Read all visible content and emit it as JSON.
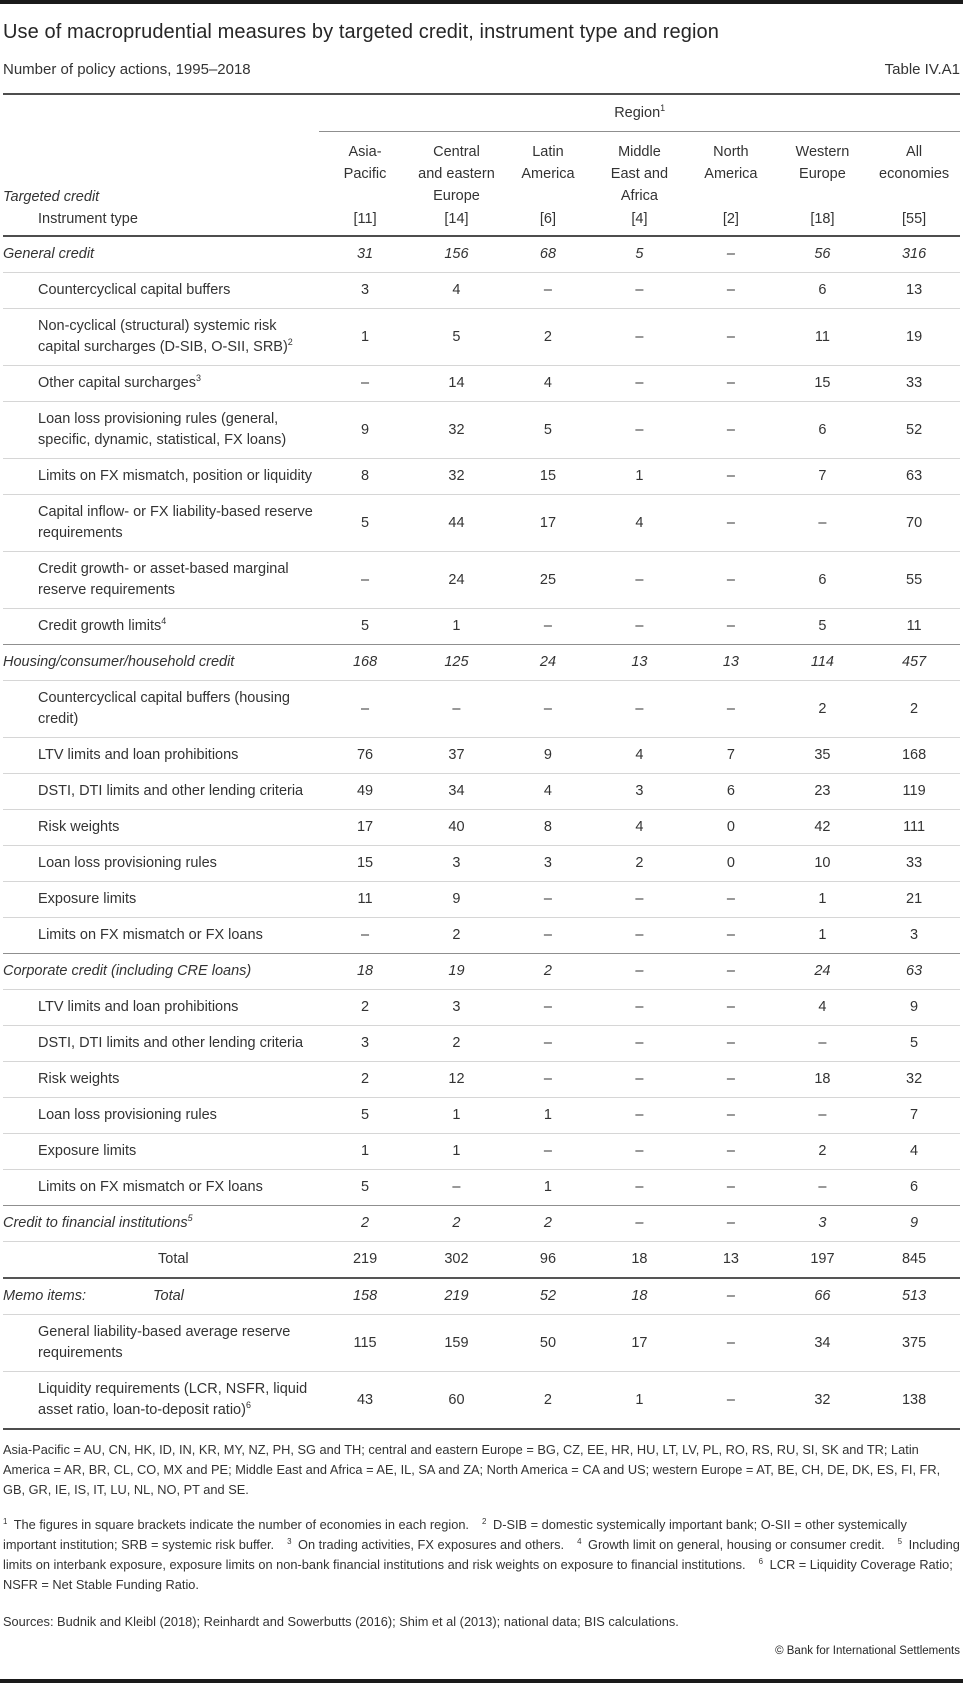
{
  "header": {
    "title": "Use of macroprudential measures by targeted credit, instrument type and region",
    "subtitle": "Number of policy actions, 1995–2018",
    "table_label": "Table IV.A1"
  },
  "table": {
    "region_label": "Region",
    "region_sup": "1",
    "targeted_credit_label": "Targeted credit",
    "instrument_type_label": "Instrument type",
    "columns": [
      {
        "name": "Asia-Pacific",
        "lines": [
          "Asia-",
          "Pacific"
        ],
        "count": "[11]"
      },
      {
        "name": "Central and eastern Europe",
        "lines": [
          "Central",
          "and eastern",
          "Europe"
        ],
        "count": "[14]"
      },
      {
        "name": "Latin America",
        "lines": [
          "Latin",
          "America"
        ],
        "count": "[6]"
      },
      {
        "name": "Middle East and Africa",
        "lines": [
          "Middle",
          "East and",
          "Africa"
        ],
        "count": "[4]"
      },
      {
        "name": "North America",
        "lines": [
          "North",
          "America"
        ],
        "count": "[2]"
      },
      {
        "name": "Western Europe",
        "lines": [
          "Western",
          "Europe"
        ],
        "count": "[18]"
      },
      {
        "name": "All economies",
        "lines": [
          "All",
          "economies"
        ],
        "count": "[55]"
      }
    ],
    "rows": [
      {
        "type": "section",
        "label": "General credit",
        "values": [
          "31",
          "156",
          "68",
          "5",
          "–",
          "56",
          "316"
        ]
      },
      {
        "type": "item",
        "label": "Countercyclical capital buffers",
        "values": [
          "3",
          "4",
          "–",
          "–",
          "–",
          "6",
          "13"
        ]
      },
      {
        "type": "item",
        "label": "Non-cyclical (structural) systemic risk capital surcharges (D-SIB, O-SII, SRB)",
        "sup": "2",
        "values": [
          "1",
          "5",
          "2",
          "–",
          "–",
          "11",
          "19"
        ]
      },
      {
        "type": "item",
        "label": "Other capital surcharges",
        "sup": "3",
        "values": [
          "–",
          "14",
          "4",
          "–",
          "–",
          "15",
          "33"
        ]
      },
      {
        "type": "item",
        "label": "Loan loss provisioning rules (general, specific, dynamic, statistical, FX loans)",
        "values": [
          "9",
          "32",
          "5",
          "–",
          "–",
          "6",
          "52"
        ]
      },
      {
        "type": "item",
        "label": "Limits on FX mismatch, position or liquidity",
        "values": [
          "8",
          "32",
          "15",
          "1",
          "–",
          "7",
          "63"
        ]
      },
      {
        "type": "item",
        "label": "Capital inflow- or FX liability-based reserve requirements",
        "values": [
          "5",
          "44",
          "17",
          "4",
          "–",
          "–",
          "70"
        ]
      },
      {
        "type": "item",
        "label": "Credit growth- or asset-based marginal reserve requirements",
        "values": [
          "–",
          "24",
          "25",
          "–",
          "–",
          "6",
          "55"
        ]
      },
      {
        "type": "item",
        "label": "Credit growth limits",
        "sup": "4",
        "values": [
          "5",
          "1",
          "–",
          "–",
          "–",
          "5",
          "11"
        ]
      },
      {
        "type": "section",
        "label": "Housing/consumer/household credit",
        "values": [
          "168",
          "125",
          "24",
          "13",
          "13",
          "114",
          "457"
        ]
      },
      {
        "type": "item",
        "label": "Countercyclical capital buffers (housing credit)",
        "values": [
          "–",
          "–",
          "–",
          "–",
          "–",
          "2",
          "2"
        ]
      },
      {
        "type": "item",
        "label": "LTV limits and loan prohibitions",
        "values": [
          "76",
          "37",
          "9",
          "4",
          "7",
          "35",
          "168"
        ]
      },
      {
        "type": "item",
        "label": "DSTI, DTI limits and other lending criteria",
        "values": [
          "49",
          "34",
          "4",
          "3",
          "6",
          "23",
          "119"
        ]
      },
      {
        "type": "item",
        "label": "Risk weights",
        "values": [
          "17",
          "40",
          "8",
          "4",
          "0",
          "42",
          "111"
        ]
      },
      {
        "type": "item",
        "label": "Loan loss provisioning rules",
        "values": [
          "15",
          "3",
          "3",
          "2",
          "0",
          "10",
          "33"
        ]
      },
      {
        "type": "item",
        "label": "Exposure limits",
        "values": [
          "11",
          "9",
          "–",
          "–",
          "–",
          "1",
          "21"
        ]
      },
      {
        "type": "item",
        "label": "Limits on FX mismatch or FX loans",
        "values": [
          "–",
          "2",
          "–",
          "–",
          "–",
          "1",
          "3"
        ]
      },
      {
        "type": "section",
        "label": "Corporate credit (including CRE loans)",
        "values": [
          "18",
          "19",
          "2",
          "–",
          "–",
          "24",
          "63"
        ]
      },
      {
        "type": "item",
        "label": "LTV limits and loan prohibitions",
        "values": [
          "2",
          "3",
          "–",
          "–",
          "–",
          "4",
          "9"
        ]
      },
      {
        "type": "item",
        "label": "DSTI, DTI limits and other lending criteria",
        "values": [
          "3",
          "2",
          "–",
          "–",
          "–",
          "–",
          "5"
        ]
      },
      {
        "type": "item",
        "label": "Risk weights",
        "values": [
          "2",
          "12",
          "–",
          "–",
          "–",
          "18",
          "32"
        ]
      },
      {
        "type": "item",
        "label": "Loan loss provisioning rules",
        "values": [
          "5",
          "1",
          "1",
          "–",
          "–",
          "–",
          "7"
        ]
      },
      {
        "type": "item",
        "label": "Exposure limits",
        "values": [
          "1",
          "1",
          "–",
          "–",
          "–",
          "2",
          "4"
        ]
      },
      {
        "type": "item",
        "label": "Limits on FX mismatch or FX loans",
        "values": [
          "5",
          "–",
          "1",
          "–",
          "–",
          "–",
          "6"
        ]
      },
      {
        "type": "section",
        "label": "Credit to financial institutions",
        "sup": "5",
        "values": [
          "2",
          "2",
          "2",
          "–",
          "–",
          "3",
          "9"
        ]
      },
      {
        "type": "total",
        "label": "Total",
        "values": [
          "219",
          "302",
          "96",
          "18",
          "13",
          "197",
          "845"
        ]
      },
      {
        "type": "memo",
        "label": "Memo items:",
        "label2": "Total",
        "values": [
          "158",
          "219",
          "52",
          "18",
          "–",
          "66",
          "513"
        ]
      },
      {
        "type": "item",
        "label": "General liability-based average reserve requirements",
        "values": [
          "115",
          "159",
          "50",
          "17",
          "–",
          "34",
          "375"
        ]
      },
      {
        "type": "item",
        "label": "Liquidity requirements (LCR, NSFR, liquid asset ratio, loan-to-deposit ratio)",
        "sup": "6",
        "values": [
          "43",
          "60",
          "2",
          "1",
          "–",
          "32",
          "138"
        ]
      }
    ]
  },
  "footer": {
    "region_note": "Asia-Pacific = AU, CN, HK, ID, IN, KR, MY, NZ, PH, SG and TH; central and eastern Europe = BG, CZ, EE, HR, HU, LT, LV, PL, RO, RS, RU, SI, SK and TR; Latin America = AR, BR, CL, CO, MX and PE; Middle East and Africa = AE, IL, SA and ZA; North America = CA and US; western Europe = AT, BE, CH, DE, DK, ES, FI, FR, GB, GR, IE, IS, IT, LU, NL, NO, PT and SE.",
    "footnotes": [
      {
        "sup": "1",
        "text": "The figures in square brackets indicate the number of economies in each region."
      },
      {
        "sup": "2",
        "text": "D-SIB = domestic systemically important bank; O-SII = other systemically important institution; SRB = systemic risk buffer."
      },
      {
        "sup": "3",
        "text": "On trading activities, FX exposures and others."
      },
      {
        "sup": "4",
        "text": "Growth limit on general, housing or consumer credit."
      },
      {
        "sup": "5",
        "text": "Including limits on interbank exposure, exposure limits on non-bank financial institutions and risk weights on exposure to financial institutions."
      },
      {
        "sup": "6",
        "text": "LCR = Liquidity Coverage Ratio; NSFR = Net Stable Funding Ratio."
      }
    ],
    "sources": "Sources: Budnik and Kleibl (2018); Reinhardt and Sowerbutts (2016); Shim et al (2013); national data; BIS calculations.",
    "copyright": "© Bank for International Settlements"
  },
  "colors": {
    "text": "#333333",
    "rule_dark": "#4d4d4d",
    "rule_light": "#d6d6d6",
    "rule_medium": "#8f8f8f",
    "edge_bar": "#1a1a1a"
  }
}
